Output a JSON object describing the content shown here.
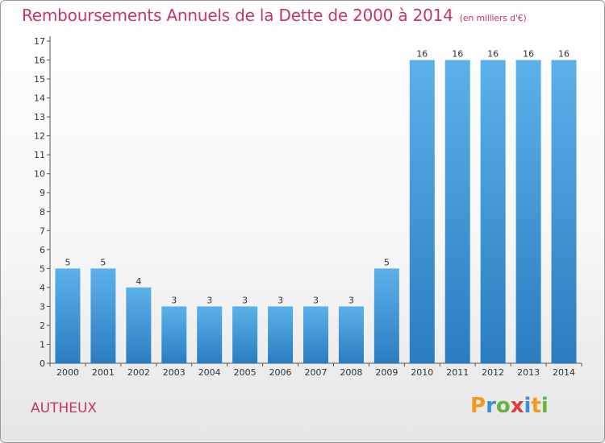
{
  "title": "Remboursements Annuels de la Dette de 2000 à 2014",
  "subtitle": "(en milliers d'€)",
  "commune": "AUTHEUX",
  "logo": {
    "letters": [
      "P",
      "r",
      "o",
      "x",
      "i",
      "t",
      "i"
    ],
    "colors": [
      "#f39a1e",
      "#3a8fd6",
      "#6ab23e",
      "#e23b3b",
      "#3a8fd6",
      "#f39a1e",
      "#6ab23e"
    ]
  },
  "colors": {
    "title": "#c8336e",
    "bar_light": "#5cb1ea",
    "bar_dark": "#2a7dc0"
  },
  "chart_data": {
    "type": "bar",
    "categories": [
      "2000",
      "2001",
      "2002",
      "2003",
      "2004",
      "2005",
      "2006",
      "2007",
      "2008",
      "2009",
      "2010",
      "2011",
      "2012",
      "2013",
      "2014"
    ],
    "values": [
      5,
      5,
      4,
      3,
      3,
      3,
      3,
      3,
      3,
      5,
      16,
      16,
      16,
      16,
      16
    ],
    "data_labels": [
      "5",
      "5",
      "4",
      "3",
      "3",
      "3",
      "3",
      "3",
      "3",
      "5",
      "16",
      "16",
      "16",
      "16",
      "16"
    ],
    "y_ticks": [
      "0",
      "1",
      "2",
      "3",
      "4",
      "5",
      "6",
      "7",
      "8",
      "9",
      "10",
      "11",
      "12",
      "13",
      "14",
      "15",
      "16",
      "17"
    ],
    "ylim": [
      0,
      17
    ],
    "grid": false
  }
}
